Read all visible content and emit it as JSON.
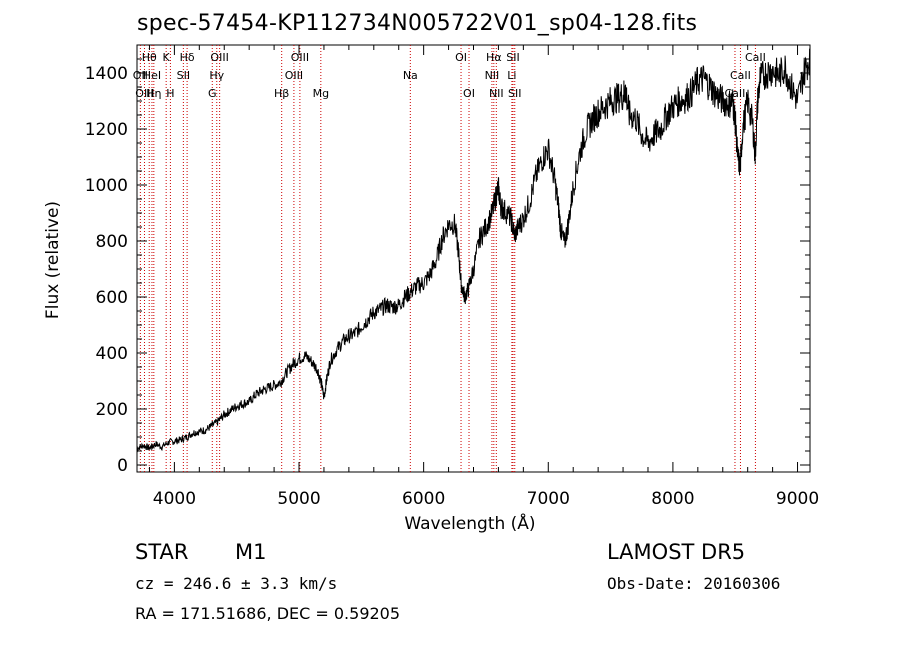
{
  "title": "spec-57454-KP112734N005722V01_sp04-128.fits",
  "footer": {
    "class_label": "STAR",
    "subclass": "M1",
    "survey": "LAMOST DR5",
    "cz": "cz = 246.6 ± 3.3 km/s",
    "obs_date": "Obs-Date: 20160306",
    "radec": "RA = 171.51686, DEC =   0.59205"
  },
  "chart_data": {
    "type": "line",
    "xlabel": "Wavelength (Å)",
    "ylabel": "Flux (relative)",
    "xlim": [
      3700,
      9100
    ],
    "ylim": [
      -25,
      1500
    ],
    "xticks": [
      4000,
      5000,
      6000,
      7000,
      8000,
      9000
    ],
    "yticks": [
      0,
      200,
      400,
      600,
      800,
      1000,
      1200,
      1400
    ],
    "line_color": "#000000",
    "marker_color": "#cc0000",
    "spectrum": [
      [
        3700,
        60
      ],
      [
        3750,
        70
      ],
      [
        3800,
        60
      ],
      [
        3850,
        75
      ],
      [
        3900,
        65
      ],
      [
        3950,
        80
      ],
      [
        4000,
        85
      ],
      [
        4050,
        90
      ],
      [
        4100,
        100
      ],
      [
        4150,
        115
      ],
      [
        4200,
        120
      ],
      [
        4250,
        125
      ],
      [
        4300,
        140
      ],
      [
        4350,
        155
      ],
      [
        4400,
        180
      ],
      [
        4450,
        195
      ],
      [
        4500,
        210
      ],
      [
        4550,
        220
      ],
      [
        4600,
        225
      ],
      [
        4650,
        250
      ],
      [
        4700,
        265
      ],
      [
        4750,
        275
      ],
      [
        4800,
        285
      ],
      [
        4850,
        295
      ],
      [
        4900,
        330
      ],
      [
        4950,
        360
      ],
      [
        5000,
        380
      ],
      [
        5050,
        390
      ],
      [
        5100,
        370
      ],
      [
        5150,
        340
      ],
      [
        5180,
        290
      ],
      [
        5200,
        240
      ],
      [
        5220,
        300
      ],
      [
        5250,
        370
      ],
      [
        5300,
        410
      ],
      [
        5350,
        440
      ],
      [
        5400,
        460
      ],
      [
        5450,
        470
      ],
      [
        5500,
        495
      ],
      [
        5550,
        520
      ],
      [
        5600,
        545
      ],
      [
        5650,
        555
      ],
      [
        5700,
        570
      ],
      [
        5750,
        565
      ],
      [
        5800,
        570
      ],
      [
        5850,
        600
      ],
      [
        5900,
        620
      ],
      [
        5950,
        640
      ],
      [
        6000,
        650
      ],
      [
        6050,
        680
      ],
      [
        6100,
        730
      ],
      [
        6150,
        810
      ],
      [
        6200,
        860
      ],
      [
        6250,
        860
      ],
      [
        6280,
        760
      ],
      [
        6300,
        650
      ],
      [
        6330,
        600
      ],
      [
        6360,
        630
      ],
      [
        6400,
        700
      ],
      [
        6450,
        810
      ],
      [
        6500,
        850
      ],
      [
        6550,
        900
      ],
      [
        6580,
        960
      ],
      [
        6600,
        990
      ],
      [
        6620,
        920
      ],
      [
        6650,
        910
      ],
      [
        6700,
        880
      ],
      [
        6730,
        820
      ],
      [
        6760,
        850
      ],
      [
        6800,
        880
      ],
      [
        6850,
        940
      ],
      [
        6900,
        1030
      ],
      [
        6950,
        1090
      ],
      [
        7000,
        1130
      ],
      [
        7050,
        1020
      ],
      [
        7080,
        930
      ],
      [
        7100,
        840
      ],
      [
        7130,
        790
      ],
      [
        7160,
        860
      ],
      [
        7200,
        990
      ],
      [
        7250,
        1110
      ],
      [
        7300,
        1190
      ],
      [
        7350,
        1230
      ],
      [
        7400,
        1260
      ],
      [
        7450,
        1280
      ],
      [
        7500,
        1300
      ],
      [
        7550,
        1310
      ],
      [
        7600,
        1320
      ],
      [
        7620,
        1340
      ],
      [
        7650,
        1250
      ],
      [
        7700,
        1240
      ],
      [
        7750,
        1180
      ],
      [
        7800,
        1150
      ],
      [
        7850,
        1180
      ],
      [
        7900,
        1200
      ],
      [
        7950,
        1250
      ],
      [
        8000,
        1280
      ],
      [
        8050,
        1300
      ],
      [
        8100,
        1310
      ],
      [
        8150,
        1330
      ],
      [
        8200,
        1370
      ],
      [
        8250,
        1380
      ],
      [
        8300,
        1350
      ],
      [
        8350,
        1320
      ],
      [
        8400,
        1300
      ],
      [
        8450,
        1290
      ],
      [
        8480,
        1300
      ],
      [
        8500,
        1230
      ],
      [
        8520,
        1100
      ],
      [
        8540,
        1060
      ],
      [
        8560,
        1200
      ],
      [
        8600,
        1300
      ],
      [
        8640,
        1220
      ],
      [
        8660,
        1100
      ],
      [
        8680,
        1300
      ],
      [
        8700,
        1380
      ],
      [
        8750,
        1400
      ],
      [
        8800,
        1410
      ],
      [
        8850,
        1390
      ],
      [
        8900,
        1420
      ],
      [
        8950,
        1350
      ],
      [
        9000,
        1300
      ],
      [
        9050,
        1400
      ],
      [
        9100,
        1460
      ]
    ],
    "lines": [
      {
        "label": "Hθ",
        "wave": 3798,
        "row": 0
      },
      {
        "label": "OII",
        "wave": 3727,
        "row": 1
      },
      {
        "label": "HeI",
        "wave": 3820,
        "row": 1
      },
      {
        "label": "OIII",
        "wave": 3760,
        "row": 2
      },
      {
        "label": "Hη",
        "wave": 3835,
        "row": 2
      },
      {
        "label": "K",
        "wave": 3934,
        "row": 0
      },
      {
        "label": "H",
        "wave": 3968,
        "row": 2
      },
      {
        "label": "Hδ",
        "wave": 4102,
        "row": 0
      },
      {
        "label": "SII",
        "wave": 4072,
        "row": 1
      },
      {
        "label": "OIII",
        "wave": 4363,
        "row": 0
      },
      {
        "label": "Hγ",
        "wave": 4340,
        "row": 1
      },
      {
        "label": "G",
        "wave": 4304,
        "row": 2
      },
      {
        "label": "Hβ",
        "wave": 4861,
        "row": 2
      },
      {
        "label": "OIII",
        "wave": 5007,
        "row": 0
      },
      {
        "label": "OIII",
        "wave": 4959,
        "row": 1
      },
      {
        "label": "Mg",
        "wave": 5175,
        "row": 2
      },
      {
        "label": "Na",
        "wave": 5893,
        "row": 1
      },
      {
        "label": "OI",
        "wave": 6300,
        "row": 0
      },
      {
        "label": "OI",
        "wave": 6364,
        "row": 2
      },
      {
        "label": "Hα",
        "wave": 6563,
        "row": 0
      },
      {
        "label": "NII",
        "wave": 6548,
        "row": 1
      },
      {
        "label": "NII",
        "wave": 6583,
        "row": 2
      },
      {
        "label": "SII",
        "wave": 6717,
        "row": 0
      },
      {
        "label": "Li",
        "wave": 6708,
        "row": 1
      },
      {
        "label": "SII",
        "wave": 6731,
        "row": 2
      },
      {
        "label": "CaII",
        "wave": 8662,
        "row": 0
      },
      {
        "label": "CaII",
        "wave": 8542,
        "row": 1
      },
      {
        "label": "CaII",
        "wave": 8498,
        "row": 2
      }
    ]
  }
}
